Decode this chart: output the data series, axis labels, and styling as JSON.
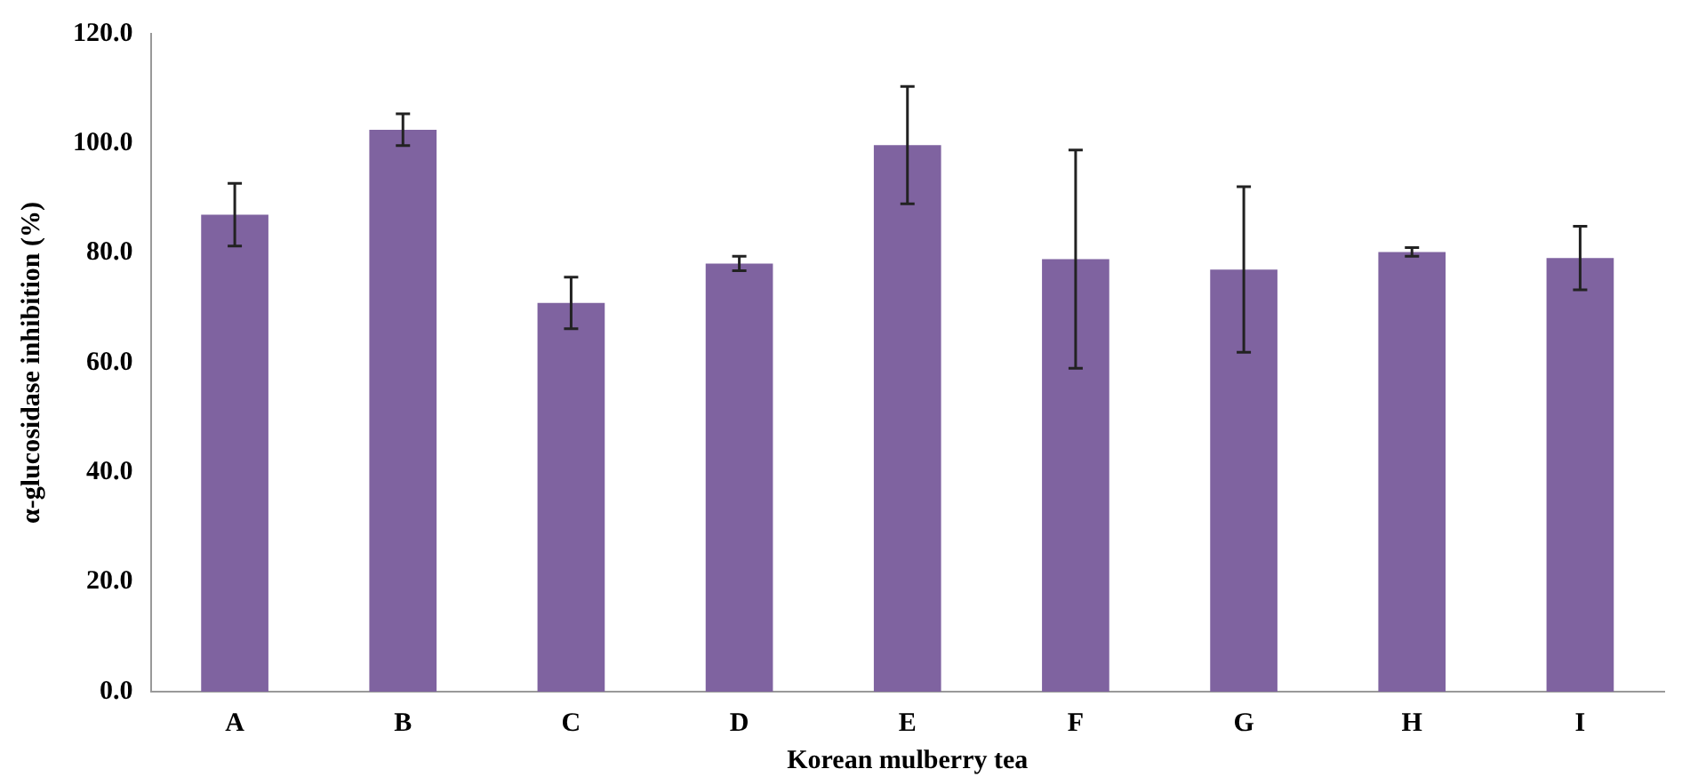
{
  "chart_data": {
    "type": "bar",
    "xlabel": "Korean mulberry tea",
    "ylabel": "α-glucosidase inhibition (%)",
    "categories": [
      "A",
      "B",
      "C",
      "D",
      "E",
      "F",
      "G",
      "H",
      "I"
    ],
    "values": [
      87.0,
      102.5,
      70.9,
      78.1,
      99.7,
      78.9,
      77.0,
      80.2,
      79.1
    ],
    "errors": [
      5.7,
      2.9,
      4.7,
      1.3,
      10.7,
      19.9,
      15.1,
      0.8,
      5.8
    ],
    "color": "#7f63a0",
    "ylim": [
      0,
      120
    ],
    "yticks": [
      {
        "value": 0,
        "label": "0.0"
      },
      {
        "value": 20,
        "label": "20.0"
      },
      {
        "value": 40,
        "label": "40.0"
      },
      {
        "value": 60,
        "label": "60.0"
      },
      {
        "value": 80,
        "label": "80.0"
      },
      {
        "value": 100,
        "label": "100.0"
      },
      {
        "value": 120,
        "label": "120.0"
      }
    ],
    "grid": false,
    "legend": false
  }
}
